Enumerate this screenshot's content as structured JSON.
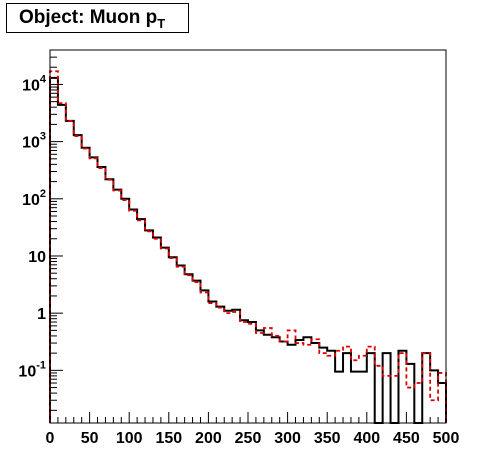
{
  "chart_data": {
    "type": "line",
    "title_main": "Object: Muon p",
    "title_sub": "T",
    "xlabel": "",
    "ylabel": "",
    "xlim": [
      0,
      500
    ],
    "ylim": [
      0.012,
      40000
    ],
    "yscale": "log",
    "grid": false,
    "legend": "none",
    "x_ticks": [
      "0",
      "50",
      "100",
      "150",
      "200",
      "250",
      "300",
      "350",
      "400",
      "450",
      "500"
    ],
    "y_ticks": [
      {
        "value": 10000,
        "base": "10",
        "exp": "4"
      },
      {
        "value": 1000,
        "base": "10",
        "exp": "3"
      },
      {
        "value": 100,
        "base": "10",
        "exp": "2"
      },
      {
        "value": 10,
        "base": "10",
        "exp": ""
      },
      {
        "value": 1,
        "base": "1",
        "exp": ""
      },
      {
        "value": 0.1,
        "base": "10",
        "exp": "-1"
      }
    ],
    "bin_width": 10,
    "series": [
      {
        "color": "#000000",
        "style": "solid",
        "values": [
          13000,
          4400,
          2300,
          1300,
          780,
          530,
          360,
          220,
          145,
          100,
          65,
          44,
          28,
          21,
          14,
          9.5,
          6.8,
          4.8,
          3.7,
          2.5,
          1.6,
          1.3,
          1.1,
          1.15,
          0.75,
          0.7,
          0.5,
          0.42,
          0.38,
          0.32,
          0.28,
          0.34,
          0.38,
          0.3,
          0.25,
          0.22,
          0.095,
          0.2,
          0.095,
          0.095,
          0.2,
          0.009,
          0.2,
          0.009,
          0.22,
          0.13,
          0.009,
          0.2,
          0.1,
          0.06
        ]
      },
      {
        "color": "#dd0000",
        "style": "dashed",
        "values": [
          17000,
          4700,
          2300,
          1250,
          760,
          510,
          345,
          215,
          140,
          95,
          62,
          42,
          27,
          20,
          13.5,
          9.2,
          6.5,
          4.6,
          3.5,
          2.3,
          1.5,
          1.25,
          1.0,
          1.05,
          0.7,
          0.65,
          0.45,
          0.55,
          0.4,
          0.32,
          0.5,
          0.3,
          0.28,
          0.35,
          0.2,
          0.18,
          0.22,
          0.26,
          0.15,
          0.18,
          0.26,
          0.12,
          0.08,
          0.08,
          0.2,
          0.05,
          0.06,
          0.2,
          0.03,
          0.09
        ]
      }
    ]
  }
}
